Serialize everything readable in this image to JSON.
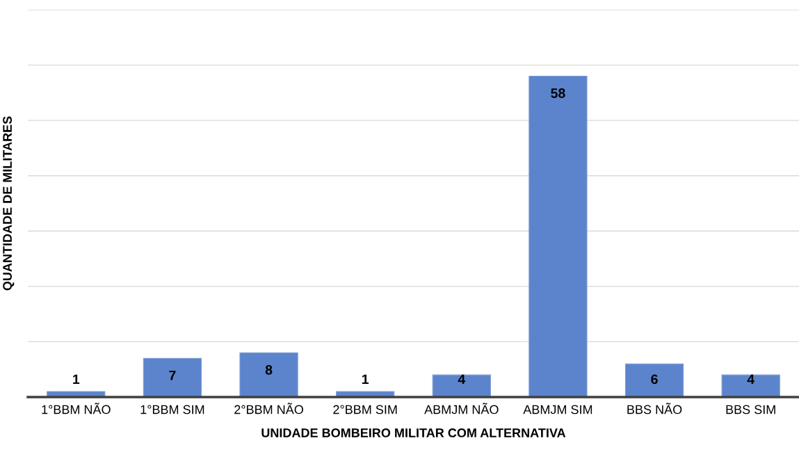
{
  "chart_data": {
    "type": "bar",
    "xlabel": "UNIDADE BOMBEIRO MILITAR COM ALTERNATIVA",
    "ylabel": "QUANTIDADE DE MILITARES",
    "categories": [
      "1°BBM NÃO",
      "1°BBM SIM",
      "2°BBM NÃO",
      "2°BBM SIM",
      "ABMJM NÃO",
      "ABMJM SIM",
      "BBS NÃO",
      "BBS SIM"
    ],
    "values": [
      1,
      7,
      8,
      1,
      4,
      58,
      6,
      4
    ],
    "color": "#5b84cc",
    "ylim": [
      0,
      70
    ],
    "yticks": [
      {
        "value": 0,
        "label": null
      },
      {
        "value": 10,
        "label": null
      },
      {
        "value": 20,
        "label": null
      },
      {
        "value": 30,
        "label": null
      },
      {
        "value": 40,
        "label": null
      },
      {
        "value": 50,
        "label": null
      },
      {
        "value": 60,
        "label": null
      },
      {
        "value": 70,
        "label": null
      }
    ],
    "tick_labels": "x",
    "grid": "y",
    "data_labels": true
  }
}
